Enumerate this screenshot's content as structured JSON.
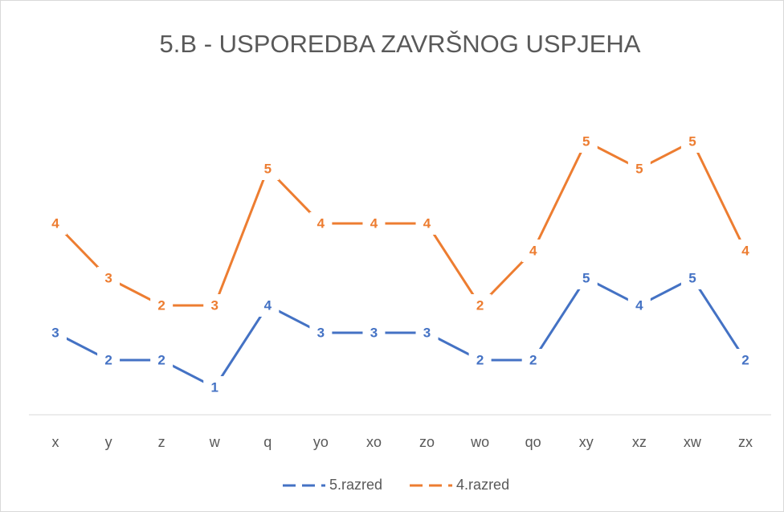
{
  "chart_data": {
    "type": "line",
    "stacked": true,
    "title": "5.B - USPOREDBA ZAVRŠNOG USPJEHA",
    "categories": [
      "x",
      "y",
      "z",
      "w",
      "q",
      "yo",
      "xo",
      "zo",
      "wo",
      "qo",
      "xy",
      "xz",
      "xw",
      "zx"
    ],
    "series": [
      {
        "name": "5.razred",
        "color": "#4472c4",
        "values": [
          3,
          2,
          2,
          1,
          4,
          3,
          3,
          3,
          2,
          2,
          5,
          4,
          5,
          2
        ]
      },
      {
        "name": "4.razred",
        "color": "#ed7d31",
        "values": [
          4,
          3,
          2,
          3,
          5,
          4,
          4,
          4,
          2,
          4,
          5,
          5,
          5,
          4
        ]
      }
    ],
    "legend": "bottom"
  }
}
